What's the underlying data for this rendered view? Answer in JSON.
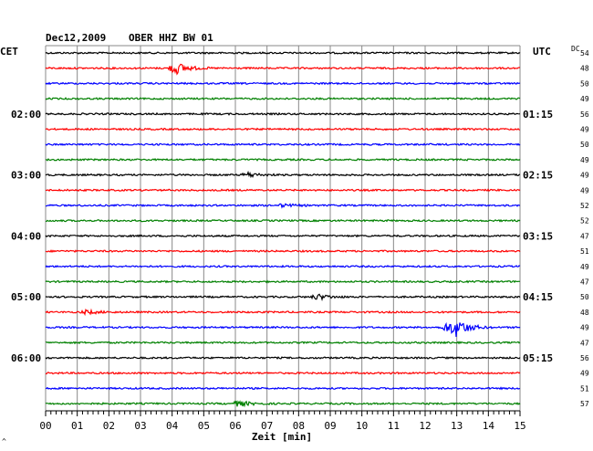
{
  "header": {
    "date": "Dec12,2009",
    "station": "OBER HHZ BW 01",
    "left_zone": "CET",
    "right_zone": "UTC",
    "dc_heading": "DC",
    "corner_mark": "^"
  },
  "chart_data": {
    "type": "line",
    "title": "Dec12,2009    OBER HHZ BW 01",
    "xlabel": "Zeit [min]",
    "xlim": [
      0,
      15
    ],
    "x_ticks": [
      "00",
      "01",
      "02",
      "03",
      "04",
      "05",
      "06",
      "07",
      "08",
      "09",
      "10",
      "11",
      "12",
      "13",
      "14",
      "15"
    ],
    "trace_count": 24,
    "trace_colors": [
      "#000000",
      "#ff0000",
      "#0000ff",
      "#008000"
    ],
    "left_time_labels": [
      {
        "trace": 4,
        "text": "02:00"
      },
      {
        "trace": 8,
        "text": "03:00"
      },
      {
        "trace": 12,
        "text": "04:00"
      },
      {
        "trace": 16,
        "text": "05:00"
      },
      {
        "trace": 20,
        "text": "06:00"
      }
    ],
    "right_time_labels": [
      {
        "trace": 4,
        "text": "01:15"
      },
      {
        "trace": 8,
        "text": "02:15"
      },
      {
        "trace": 12,
        "text": "03:15"
      },
      {
        "trace": 16,
        "text": "04:15"
      },
      {
        "trace": 20,
        "text": "05:15"
      }
    ],
    "dc_values": [
      "54",
      "48",
      "50",
      "49",
      "56",
      "49",
      "50",
      "49",
      "49",
      "49",
      "52",
      "52",
      "47",
      "51",
      "49",
      "47",
      "50",
      "48",
      "49",
      "47",
      "56",
      "49",
      "51",
      "57"
    ],
    "events": [
      {
        "trace": 1,
        "minute": 4.1,
        "amplitude": 7
      },
      {
        "trace": 8,
        "minute": 6.4,
        "amplitude": 2.5
      },
      {
        "trace": 10,
        "minute": 7.5,
        "amplitude": 1.5
      },
      {
        "trace": 16,
        "minute": 8.6,
        "amplitude": 3
      },
      {
        "trace": 17,
        "minute": 1.3,
        "amplitude": 2
      },
      {
        "trace": 18,
        "minute": 12.7,
        "amplitude": 5
      },
      {
        "trace": 18,
        "minute": 13.0,
        "amplitude": 8
      },
      {
        "trace": 23,
        "minute": 6.1,
        "amplitude": 3
      }
    ]
  }
}
